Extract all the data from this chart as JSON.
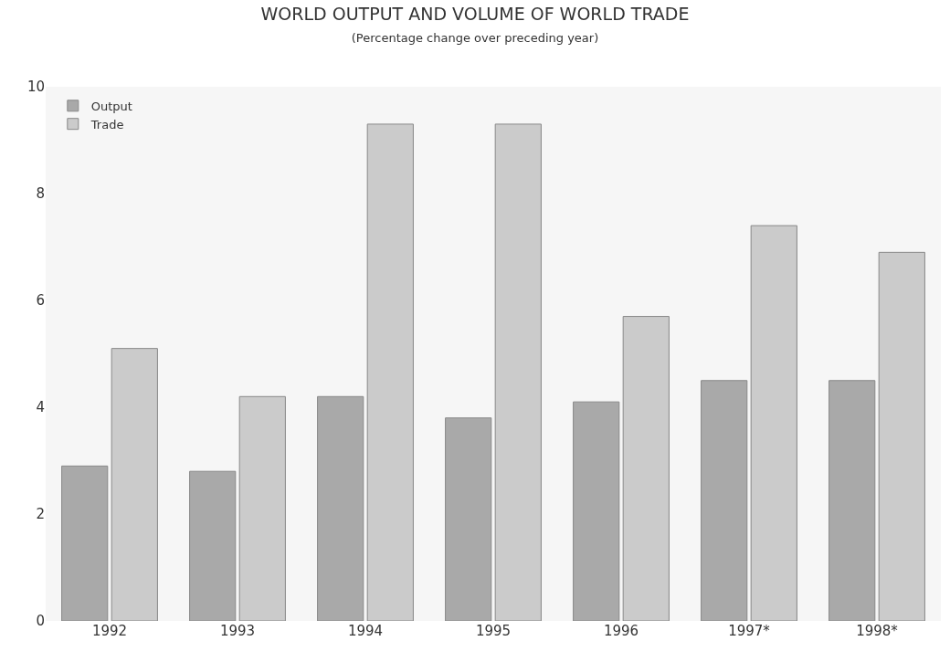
{
  "chart_data": {
    "type": "bar",
    "title": "WORLD OUTPUT AND VOLUME OF WORLD TRADE",
    "subtitle": "(Percentage change over preceding year)",
    "categories": [
      "1992",
      "1993",
      "1994",
      "1995",
      "1996",
      "1997*",
      "1998*"
    ],
    "series": [
      {
        "name": "Output",
        "color": "#a9a9a9",
        "values": [
          2.9,
          2.8,
          4.2,
          3.8,
          4.1,
          4.5,
          4.5
        ]
      },
      {
        "name": "Trade",
        "color": "#cbcbcb",
        "values": [
          5.1,
          4.2,
          9.3,
          9.3,
          5.7,
          7.4,
          6.9
        ]
      }
    ],
    "ylim": [
      0,
      10
    ],
    "yticks": [
      0,
      2,
      4,
      6,
      8,
      10
    ],
    "grid": false,
    "legend": "top left"
  }
}
